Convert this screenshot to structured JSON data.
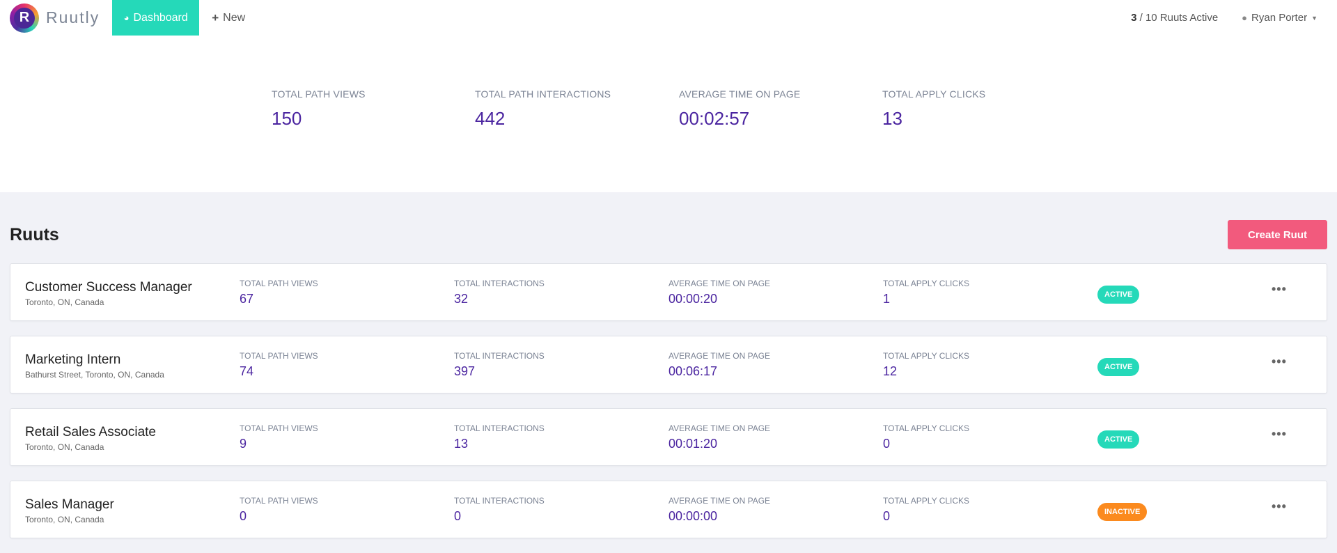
{
  "brand": {
    "logo_letter": "R",
    "name": "Ruutly"
  },
  "nav": {
    "dashboard_label": "Dashboard",
    "new_label": "New",
    "ruuts_active_count": "3",
    "ruuts_active_rest": " / 10 Ruuts Active",
    "user_name": "Ryan Porter"
  },
  "summary": [
    {
      "label": "TOTAL PATH VIEWS",
      "value": "150"
    },
    {
      "label": "TOTAL PATH INTERACTIONS",
      "value": "442"
    },
    {
      "label": "AVERAGE TIME ON PAGE",
      "value": "00:02:57"
    },
    {
      "label": "TOTAL APPLY CLICKS",
      "value": "13"
    }
  ],
  "section": {
    "title": "Ruuts",
    "create_label": "Create Ruut"
  },
  "colors": {
    "active": "#25d9b9",
    "inactive": "#fb8a1e",
    "accent_value": "#4b25a0"
  },
  "rows": [
    {
      "title": "Customer Success Manager",
      "location": "Toronto, ON, Canada",
      "views_label": "TOTAL PATH VIEWS",
      "views": "67",
      "interactions_label": "TOTAL INTERACTIONS",
      "interactions": "32",
      "time_label": "AVERAGE TIME ON PAGE",
      "time": "00:00:20",
      "clicks_label": "TOTAL APPLY CLICKS",
      "clicks": "1",
      "status": "ACTIVE"
    },
    {
      "title": "Marketing Intern",
      "location": "Bathurst Street, Toronto, ON, Canada",
      "views_label": "TOTAL PATH VIEWS",
      "views": "74",
      "interactions_label": "TOTAL INTERACTIONS",
      "interactions": "397",
      "time_label": "AVERAGE TIME ON PAGE",
      "time": "00:06:17",
      "clicks_label": "TOTAL APPLY CLICKS",
      "clicks": "12",
      "status": "ACTIVE"
    },
    {
      "title": "Retail Sales Associate",
      "location": "Toronto, ON, Canada",
      "views_label": "TOTAL PATH VIEWS",
      "views": "9",
      "interactions_label": "TOTAL INTERACTIONS",
      "interactions": "13",
      "time_label": "AVERAGE TIME ON PAGE",
      "time": "00:01:20",
      "clicks_label": "TOTAL APPLY CLICKS",
      "clicks": "0",
      "status": "ACTIVE"
    },
    {
      "title": "Sales Manager",
      "location": "Toronto, ON, Canada",
      "views_label": "TOTAL PATH VIEWS",
      "views": "0",
      "interactions_label": "TOTAL INTERACTIONS",
      "interactions": "0",
      "time_label": "AVERAGE TIME ON PAGE",
      "time": "00:00:00",
      "clicks_label": "TOTAL APPLY CLICKS",
      "clicks": "0",
      "status": "INACTIVE"
    }
  ]
}
